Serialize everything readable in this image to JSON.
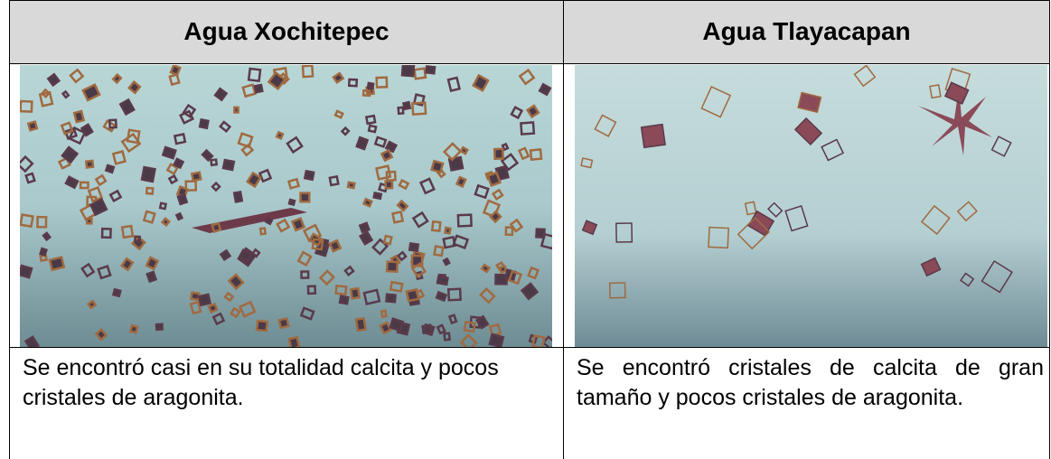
{
  "table": {
    "header": [
      "Agua Xochitepec",
      "Agua Tlayacapan"
    ],
    "rows": [
      [
        "Se encontró casi en su totalidad calcita y pocos cristales de aragonita.",
        "Se encontró cristales de calcita de gran tamaño y pocos cristales de aragonita."
      ]
    ]
  }
}
